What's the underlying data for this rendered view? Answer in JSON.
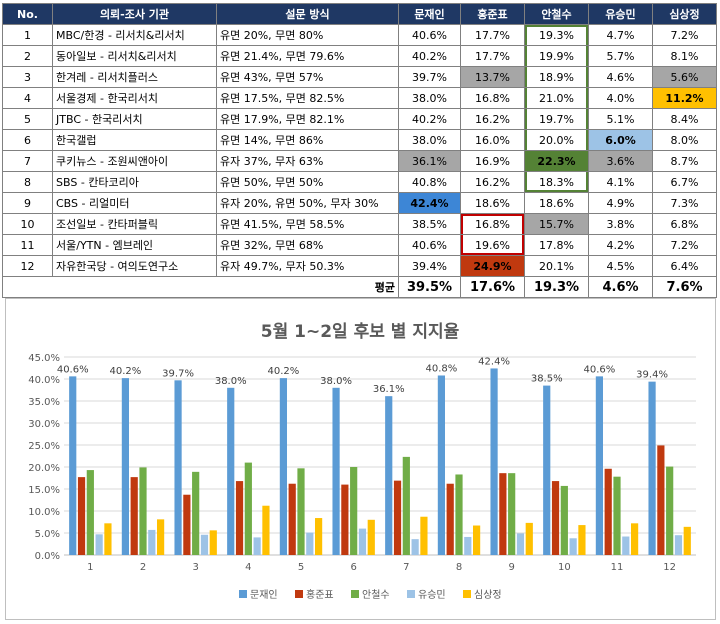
{
  "table": {
    "headers": [
      "No.",
      "의뢰-조사 기관",
      "설문 방식",
      "문재인",
      "홍준표",
      "안철수",
      "유승민",
      "심상정"
    ],
    "rows": [
      [
        "1",
        "MBC/한경 - 리서치&리서치",
        "유면 20%, 무면 80%",
        "40.6%",
        "17.7%",
        "19.3%",
        "4.7%",
        "7.2%"
      ],
      [
        "2",
        "동아일보 - 리서치&리서치",
        "유면 21.4%, 무면 79.6%",
        "40.2%",
        "17.7%",
        "19.9%",
        "5.7%",
        "8.1%"
      ],
      [
        "3",
        "한겨레 - 리서치플러스",
        "유면 43%, 무면 57%",
        "39.7%",
        "13.7%",
        "18.9%",
        "4.6%",
        "5.6%"
      ],
      [
        "4",
        "서울경제 - 한국리서치",
        "유면 17.5%, 무면 82.5%",
        "38.0%",
        "16.8%",
        "21.0%",
        "4.0%",
        "11.2%"
      ],
      [
        "5",
        "JTBC - 한국리서치",
        "유면 17.9%, 무면 82.1%",
        "40.2%",
        "16.2%",
        "19.7%",
        "5.1%",
        "8.4%"
      ],
      [
        "6",
        "한국갤럽",
        "유면 14%, 무면 86%",
        "38.0%",
        "16.0%",
        "20.0%",
        "6.0%",
        "8.0%"
      ],
      [
        "7",
        "쿠키뉴스 - 조원씨앤아이",
        "유자 37%, 무자 63%",
        "36.1%",
        "16.9%",
        "22.3%",
        "3.6%",
        "8.7%"
      ],
      [
        "8",
        "SBS - 칸타코리아",
        "유면 50%, 무면 50%",
        "40.8%",
        "16.2%",
        "18.3%",
        "4.1%",
        "6.7%"
      ],
      [
        "9",
        "CBS - 리얼미터",
        "유자 20%, 유면 50%, 무자 30%",
        "42.4%",
        "18.6%",
        "18.6%",
        "4.9%",
        "7.3%"
      ],
      [
        "10",
        "조선일보 - 칸타퍼블릭",
        "유면 41.5%, 무면 58.5%",
        "38.5%",
        "16.8%",
        "15.7%",
        "3.8%",
        "6.8%"
      ],
      [
        "11",
        "서울/YTN - 엠브레인",
        "유면 32%, 무면 68%",
        "40.6%",
        "19.6%",
        "17.8%",
        "4.2%",
        "7.2%"
      ],
      [
        "12",
        "자유한국당 - 여의도연구소",
        "유자 49.7%, 무자 50.3%",
        "39.4%",
        "24.9%",
        "20.1%",
        "4.5%",
        "6.4%"
      ]
    ],
    "average_label": "평균",
    "averages": [
      "39.5%",
      "17.6%",
      "19.3%",
      "4.6%",
      "7.6%"
    ]
  },
  "chart_data": {
    "type": "bar",
    "title": "5월 1~2일 후보 별 지지율",
    "categories": [
      "1",
      "2",
      "3",
      "4",
      "5",
      "6",
      "7",
      "8",
      "9",
      "10",
      "11",
      "12"
    ],
    "series": [
      {
        "name": "문재인",
        "color": "#5b9bd5",
        "values": [
          40.6,
          40.2,
          39.7,
          38.0,
          40.2,
          38.0,
          36.1,
          40.8,
          42.4,
          38.5,
          40.6,
          39.4
        ],
        "labels": [
          "40.6%",
          "40.2%",
          "39.7%",
          "38.0%",
          "40.2%",
          "38.0%",
          "36.1%",
          "40.8%",
          "42.4%",
          "38.5%",
          "40.6%",
          "39.4%"
        ]
      },
      {
        "name": "홍준표",
        "color": "#c0390f",
        "values": [
          17.7,
          17.7,
          13.7,
          16.8,
          16.2,
          16.0,
          16.9,
          16.2,
          18.6,
          16.8,
          19.6,
          24.9
        ]
      },
      {
        "name": "안철수",
        "color": "#70ad47",
        "values": [
          19.3,
          19.9,
          18.9,
          21.0,
          19.7,
          20.0,
          22.3,
          18.3,
          18.6,
          15.7,
          17.8,
          20.1
        ]
      },
      {
        "name": "유승민",
        "color": "#9dc3e6",
        "values": [
          4.7,
          5.7,
          4.6,
          4.0,
          5.1,
          6.0,
          3.6,
          4.1,
          4.9,
          3.8,
          4.2,
          4.5
        ]
      },
      {
        "name": "심상정",
        "color": "#ffc000",
        "values": [
          7.2,
          8.1,
          5.6,
          11.2,
          8.4,
          8.0,
          8.7,
          6.7,
          7.3,
          6.8,
          7.2,
          6.4
        ]
      }
    ],
    "ylim": [
      0,
      45
    ],
    "ytick_step": 5,
    "ytick_labels": [
      "0.0%",
      "5.0%",
      "10.0%",
      "15.0%",
      "20.0%",
      "25.0%",
      "30.0%",
      "35.0%",
      "40.0%",
      "45.0%"
    ],
    "grid": true,
    "legend": "bottom"
  }
}
